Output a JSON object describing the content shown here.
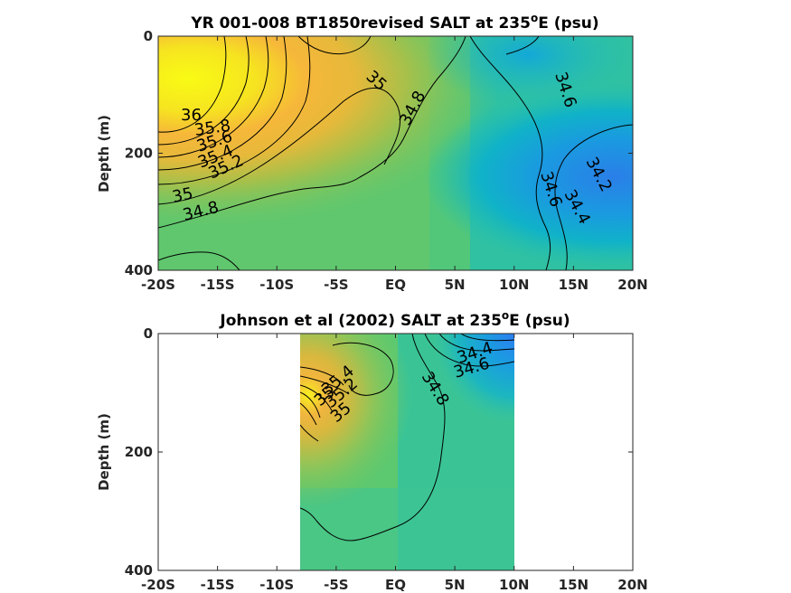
{
  "chart_data": [
    {
      "type": "contour",
      "title": "YR 001-008 BT1850revised SALT at 235",
      "title_superscript": "o",
      "title_suffix": "E (psu)",
      "xlabel": "",
      "ylabel": "Depth (m)",
      "x_ticks": [
        "-20S",
        "-15S",
        "-10S",
        "-5S",
        "EQ",
        "5N",
        "10N",
        "15N",
        "20N"
      ],
      "x_tick_values": [
        -20,
        -15,
        -10,
        -5,
        0,
        5,
        10,
        15,
        20
      ],
      "y_ticks": [
        "0",
        "200",
        "400"
      ],
      "y_tick_values": [
        0,
        200,
        400
      ],
      "xlim": [
        -20,
        20
      ],
      "ylim": [
        0,
        400
      ],
      "y_reversed": true,
      "colormap": "parula",
      "contour_labels": [
        {
          "text": "36",
          "lat": -17.0,
          "depth": 130
        },
        {
          "text": "35.8",
          "lat": -15.0,
          "depth": 155
        },
        {
          "text": "35.6",
          "lat": -14.6,
          "depth": 175
        },
        {
          "text": "35.4",
          "lat": -14.4,
          "depth": 192
        },
        {
          "text": "35.2",
          "lat": -13.8,
          "depth": 210
        },
        {
          "text": "35",
          "lat": -17.6,
          "depth": 268
        },
        {
          "text": "34.8",
          "lat": -15.8,
          "depth": 290
        },
        {
          "text": "35",
          "lat": -1.2,
          "depth": 65
        },
        {
          "text": "34.8",
          "lat": 2.0,
          "depth": 125
        },
        {
          "text": "34.6",
          "lat": 13.8,
          "depth": 95
        },
        {
          "text": "34.6",
          "lat": 12.8,
          "depth": 270
        },
        {
          "text": "34.4",
          "lat": 14.8,
          "depth": 300
        },
        {
          "text": "34.2",
          "lat": 17.8,
          "depth": 245
        }
      ]
    },
    {
      "type": "contour",
      "title": "Johnson et al (2002) SALT at 235",
      "title_superscript": "o",
      "title_suffix": "E (psu)",
      "xlabel": "",
      "ylabel": "Depth (m)",
      "x_ticks": [
        "-20S",
        "-15S",
        "-10S",
        "-5S",
        "EQ",
        "5N",
        "10N",
        "15N",
        "20N"
      ],
      "x_tick_values": [
        -20,
        -15,
        -10,
        -5,
        0,
        5,
        10,
        15,
        20
      ],
      "y_ticks": [
        "0",
        "200",
        "400"
      ],
      "y_tick_values": [
        0,
        200,
        400
      ],
      "xlim": [
        -20,
        20
      ],
      "ylim": [
        0,
        400
      ],
      "y_reversed": true,
      "data_extent_lat": [
        -8,
        10
      ],
      "colormap": "parula",
      "contour_labels": [
        {
          "text": "35.4",
          "lat": -3.8,
          "depth": 80
        },
        {
          "text": "35.2",
          "lat": -3.6,
          "depth": 105
        },
        {
          "text": "35",
          "lat": -4.6,
          "depth": 130
        },
        {
          "text": "35",
          "lat": -5.0,
          "depth": 140
        },
        {
          "text": "34.4",
          "lat": 7.2,
          "depth": 42
        },
        {
          "text": "34.6",
          "lat": 6.9,
          "depth": 65
        },
        {
          "text": "34.8",
          "lat": 3.5,
          "depth": 95
        }
      ]
    }
  ]
}
